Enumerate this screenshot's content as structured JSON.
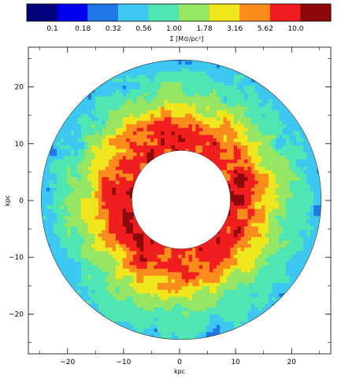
{
  "chart_data": {
    "type": "heatmap",
    "colorbar": {
      "ticks": [
        "0.1",
        "0.18",
        "0.32",
        "0.56",
        "1.00",
        "1.78",
        "3.16",
        "5.62",
        "10.0"
      ],
      "label": "Σ [M⊙/pc²]",
      "colors": [
        "#00007a",
        "#0000ee",
        "#1e78e6",
        "#3cc8f0",
        "#50e6b4",
        "#96e664",
        "#f0e61e",
        "#fa8c1e",
        "#f01e1e",
        "#8c0a0a"
      ]
    },
    "x_axis": {
      "label": "kpc",
      "ticks": [
        -20,
        -10,
        0,
        10,
        20
      ],
      "tick_labels": [
        "−20",
        "−10",
        "0",
        "10",
        "20"
      ],
      "range": [
        -27,
        27
      ]
    },
    "y_axis": {
      "label": "kpc",
      "ticks": [
        -20,
        -10,
        0,
        10,
        20
      ],
      "tick_labels": [
        "−20",
        "−10",
        "0",
        "10",
        "20"
      ],
      "range": [
        -27,
        27
      ]
    },
    "disk": {
      "outer_radius_kpc": 25,
      "inner_hole_radius_kpc": 8.8
    },
    "radial_profile": [
      {
        "r_kpc": 9,
        "level": 8
      },
      {
        "r_kpc": 12,
        "level": 8
      },
      {
        "r_kpc": 14,
        "level": 7
      },
      {
        "r_kpc": 16,
        "level": 6
      },
      {
        "r_kpc": 18,
        "level": 5
      },
      {
        "r_kpc": 21,
        "level": 4
      },
      {
        "r_kpc": 25,
        "level": 3
      }
    ]
  }
}
